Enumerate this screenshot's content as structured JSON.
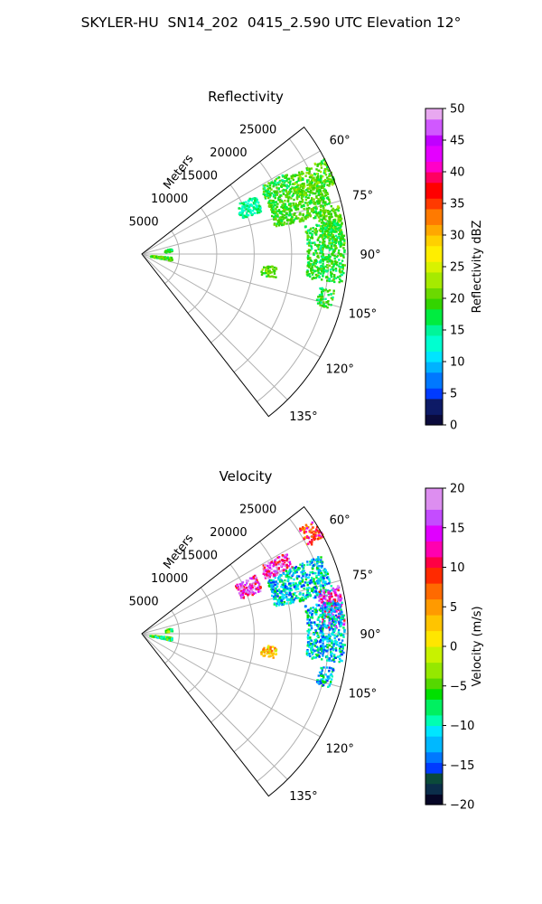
{
  "figure": {
    "title": "SKYLER-HU  SN14_202  0415_2.590 UTC Elevation 12°"
  },
  "chart_data": [
    {
      "type": "polar-sector",
      "title": "Reflectivity",
      "range_label": "Meters",
      "range_ticks": [
        5000,
        10000,
        15000,
        20000,
        25000
      ],
      "range_max": 27500,
      "azimuth_ticks": [
        "60°",
        "75°",
        "90°",
        "105°",
        "120°",
        "135°"
      ],
      "azimuth_range_deg": [
        52,
        142
      ],
      "colorbar": {
        "label": "Reflectivity dBZ",
        "min": 0,
        "max": 50,
        "ticks": [
          "0",
          "5",
          "10",
          "15",
          "20",
          "25",
          "30",
          "35",
          "40",
          "45",
          "50"
        ]
      },
      "echo_regions": [
        {
          "az": [
            60,
            66
          ],
          "r": [
            18000,
            22000
          ],
          "value": 18
        },
        {
          "az": [
            66,
            78
          ],
          "r": [
            18000,
            26000
          ],
          "value": 19
        },
        {
          "az": [
            76,
            88
          ],
          "r": [
            24000,
            27000
          ],
          "value": 20
        },
        {
          "az": [
            80,
            98
          ],
          "r": [
            22000,
            27000
          ],
          "value": 18
        },
        {
          "az": [
            62,
            70
          ],
          "r": [
            22000,
            27500
          ],
          "value": 20
        },
        {
          "az": [
            62,
            70
          ],
          "r": [
            14000,
            17000
          ],
          "value": 15
        },
        {
          "az": [
            78,
            84
          ],
          "r": [
            3000,
            4000
          ],
          "value": 18
        },
        {
          "az": [
            95,
            102
          ],
          "r": [
            1000,
            4000
          ],
          "value": 20
        },
        {
          "az": [
            95,
            100
          ],
          "r": [
            16000,
            18000
          ],
          "value": 20
        },
        {
          "az": [
            100,
            106
          ],
          "r": [
            24000,
            26000
          ],
          "value": 18
        }
      ]
    },
    {
      "type": "polar-sector",
      "title": "Velocity",
      "range_label": "Meters",
      "range_ticks": [
        5000,
        10000,
        15000,
        20000,
        25000
      ],
      "range_max": 27500,
      "azimuth_ticks": [
        "60°",
        "75°",
        "90°",
        "105°",
        "120°",
        "135°"
      ],
      "azimuth_range_deg": [
        52,
        142
      ],
      "colorbar": {
        "label": "Velocity (m/s)",
        "min": -20,
        "max": 20,
        "ticks": [
          "−20",
          "−15",
          "−10",
          "−5",
          "0",
          "5",
          "10",
          "15",
          "20"
        ]
      },
      "echo_regions": [
        {
          "az": [
            60,
            66
          ],
          "r": [
            18000,
            22000
          ],
          "value": 14
        },
        {
          "az": [
            66,
            78
          ],
          "r": [
            18000,
            26000
          ],
          "value": -11
        },
        {
          "az": [
            76,
            88
          ],
          "r": [
            24000,
            27000
          ],
          "value": 14
        },
        {
          "az": [
            80,
            98
          ],
          "r": [
            22000,
            27000
          ],
          "value": -11
        },
        {
          "az": [
            56,
            62
          ],
          "r": [
            25000,
            27500
          ],
          "value": 9
        },
        {
          "az": [
            62,
            70
          ],
          "r": [
            14000,
            17000
          ],
          "value": 14
        },
        {
          "az": [
            78,
            84
          ],
          "r": [
            3000,
            4000
          ],
          "value": -6
        },
        {
          "az": [
            95,
            102
          ],
          "r": [
            1000,
            4000
          ],
          "value": -6
        },
        {
          "az": [
            95,
            100
          ],
          "r": [
            16000,
            18000
          ],
          "value": 3
        },
        {
          "az": [
            100,
            106
          ],
          "r": [
            24000,
            26000
          ],
          "value": -11
        }
      ]
    }
  ]
}
